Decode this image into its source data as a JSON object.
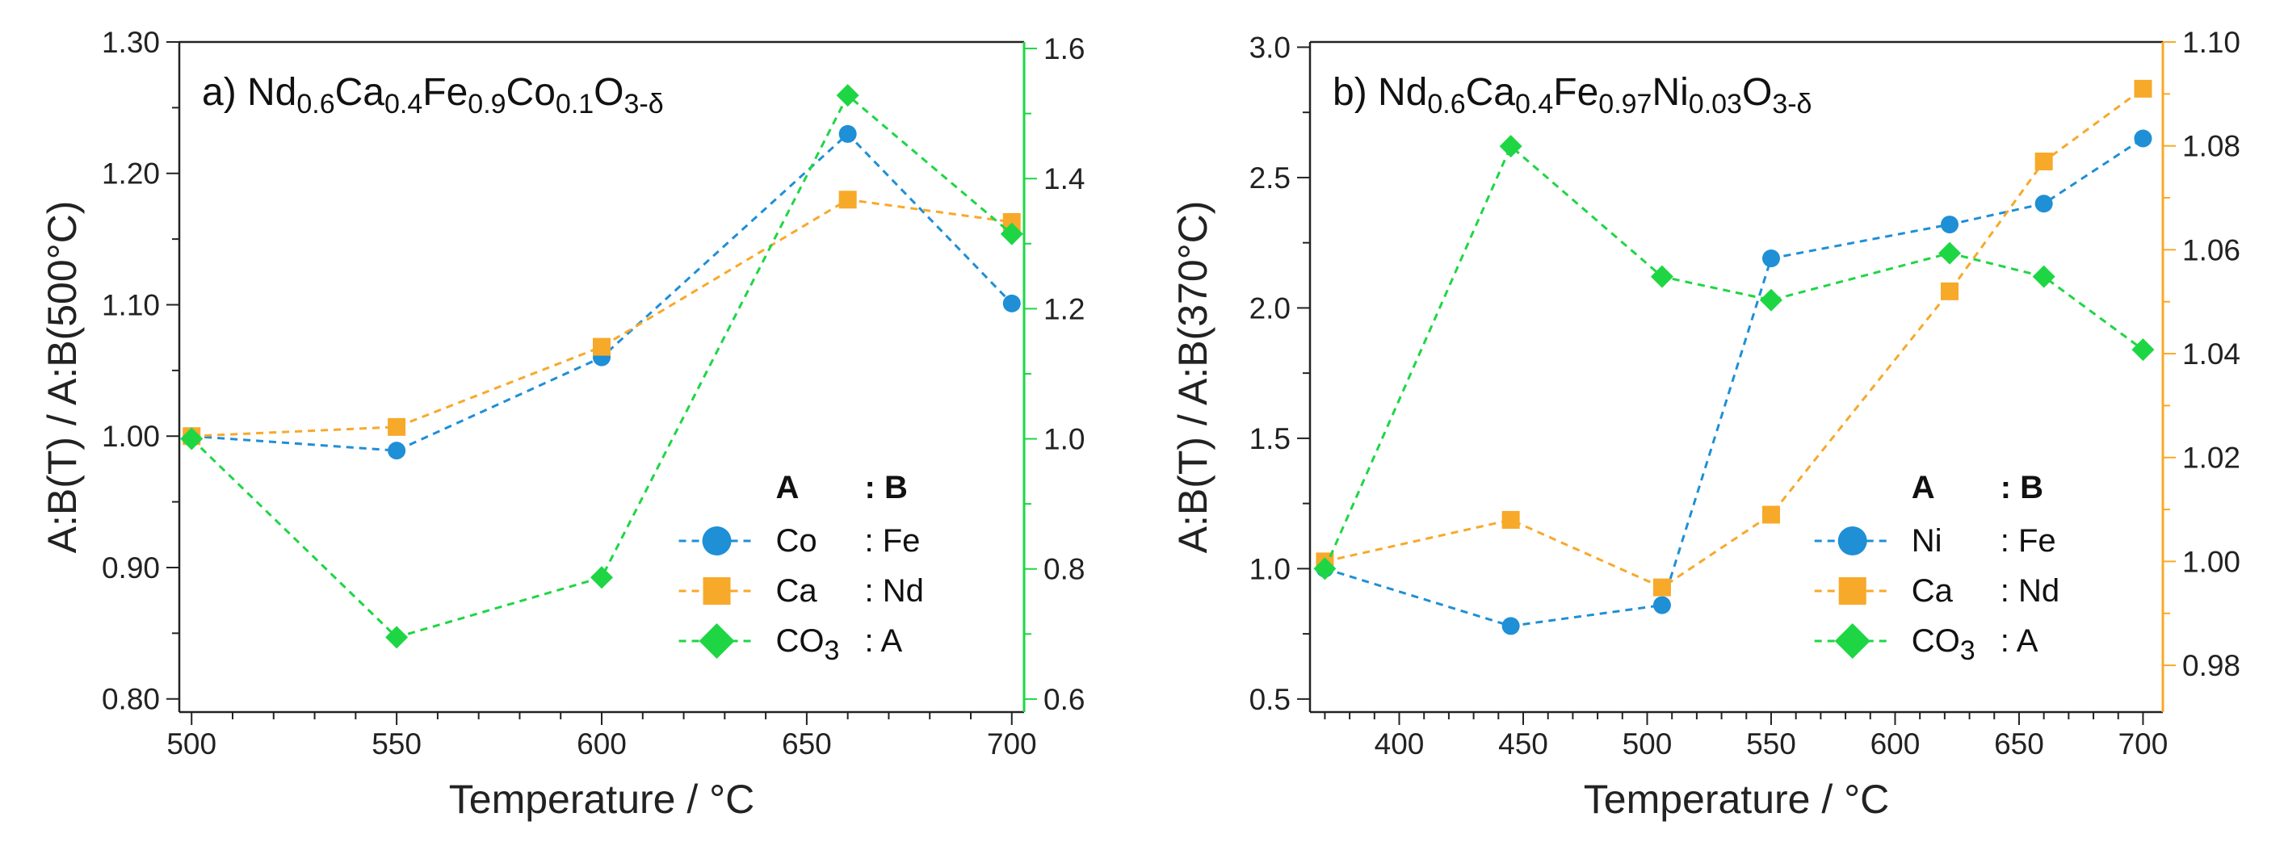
{
  "colors": {
    "blue": "#1f8fd6",
    "orange": "#f7a92a",
    "green": "#1ed644",
    "axis": "#222222"
  },
  "chart_data": [
    {
      "type": "line",
      "title_parts": [
        {
          "text": "a) Nd",
          "sub": false
        },
        {
          "text": "0.6",
          "sub": true
        },
        {
          "text": "Ca",
          "sub": false
        },
        {
          "text": "0.4",
          "sub": true
        },
        {
          "text": "Fe",
          "sub": false
        },
        {
          "text": "0.9",
          "sub": true
        },
        {
          "text": "Co",
          "sub": false
        },
        {
          "text": "0.1",
          "sub": true
        },
        {
          "text": "O",
          "sub": false
        },
        {
          "text": "3-δ",
          "sub": true
        }
      ],
      "xlabel": "Temperature / °C",
      "ylabel": "A:B(T) / A:B(500°C)",
      "xlim": [
        497,
        703
      ],
      "ylim": [
        0.79,
        1.3
      ],
      "y2lim": [
        0.58,
        1.61
      ],
      "xticks": [
        500,
        550,
        600,
        650,
        700
      ],
      "yticks": [
        0.8,
        0.9,
        1.0,
        1.1,
        1.2,
        1.3
      ],
      "y2ticks": [
        0.6,
        0.8,
        1.0,
        1.2,
        1.4,
        1.6
      ],
      "y2_color": "#1ed644",
      "legend_header": {
        "a": "A",
        "b": ": B"
      },
      "series": [
        {
          "name": "Co : Fe",
          "a_label": "Co",
          "a_sub": "",
          "b_label": ": Fe",
          "marker": "circle",
          "color": "#1f8fd6",
          "axis": "left",
          "x": [
            500,
            550,
            600,
            660,
            700
          ],
          "values": [
            1.0,
            0.989,
            1.06,
            1.23,
            1.101
          ]
        },
        {
          "name": "Ca : Nd",
          "a_label": "Ca",
          "a_sub": "",
          "b_label": ": Nd",
          "marker": "square",
          "color": "#f7a92a",
          "axis": "left",
          "x": [
            500,
            550,
            600,
            660,
            700
          ],
          "values": [
            1.0,
            1.007,
            1.068,
            1.18,
            1.163
          ]
        },
        {
          "name": "CO3 : A",
          "a_label": "CO",
          "a_sub": "3",
          "b_label": ": A",
          "marker": "diamond",
          "color": "#1ed644",
          "axis": "right",
          "x": [
            500,
            550,
            600,
            660,
            700
          ],
          "values": [
            1.0,
            0.695,
            0.787,
            1.528,
            1.315
          ]
        }
      ]
    },
    {
      "type": "line",
      "title_parts": [
        {
          "text": "b) Nd",
          "sub": false
        },
        {
          "text": "0.6",
          "sub": true
        },
        {
          "text": "Ca",
          "sub": false
        },
        {
          "text": "0.4",
          "sub": true
        },
        {
          "text": "Fe",
          "sub": false
        },
        {
          "text": "0.97",
          "sub": true
        },
        {
          "text": "Ni",
          "sub": false
        },
        {
          "text": "0.03",
          "sub": true
        },
        {
          "text": "O",
          "sub": false
        },
        {
          "text": "3-δ",
          "sub": true
        }
      ],
      "xlabel": "Temperature / °C",
      "ylabel": "A:B(T) / A:B(370°C)",
      "xlim": [
        364,
        708
      ],
      "ylim": [
        0.45,
        3.02
      ],
      "y2lim": [
        0.971,
        1.1
      ],
      "xticks": [
        400,
        450,
        500,
        550,
        600,
        650,
        700
      ],
      "yticks": [
        0.5,
        1.0,
        1.5,
        2.0,
        2.5,
        3.0
      ],
      "y2ticks": [
        0.98,
        1.0,
        1.02,
        1.04,
        1.06,
        1.08,
        1.1
      ],
      "y2_color": "#f7a92a",
      "legend_header": {
        "a": "A",
        "b": ": B"
      },
      "series": [
        {
          "name": "Ni : Fe",
          "a_label": "Ni",
          "a_sub": "",
          "b_label": ": Fe",
          "marker": "circle",
          "color": "#1f8fd6",
          "axis": "left",
          "x": [
            370,
            445,
            506,
            550,
            622,
            660,
            700
          ],
          "values": [
            1.0,
            0.78,
            0.86,
            2.19,
            2.32,
            2.4,
            2.65
          ]
        },
        {
          "name": "Ca : Nd",
          "a_label": "Ca",
          "a_sub": "",
          "b_label": ": Nd",
          "marker": "square",
          "color": "#f7a92a",
          "axis": "right",
          "x": [
            370,
            445,
            506,
            550,
            622,
            660,
            700
          ],
          "values": [
            1.0,
            1.008,
            0.995,
            1.009,
            1.052,
            1.077,
            1.091
          ]
        },
        {
          "name": "CO3 : A",
          "a_label": "CO",
          "a_sub": "3",
          "b_label": ": A",
          "marker": "diamond",
          "color": "#1ed644",
          "axis": "left",
          "x": [
            370,
            445,
            506,
            550,
            622,
            660,
            700
          ],
          "values": [
            1.0,
            2.62,
            2.12,
            2.03,
            2.21,
            2.12,
            1.84
          ]
        }
      ]
    }
  ]
}
